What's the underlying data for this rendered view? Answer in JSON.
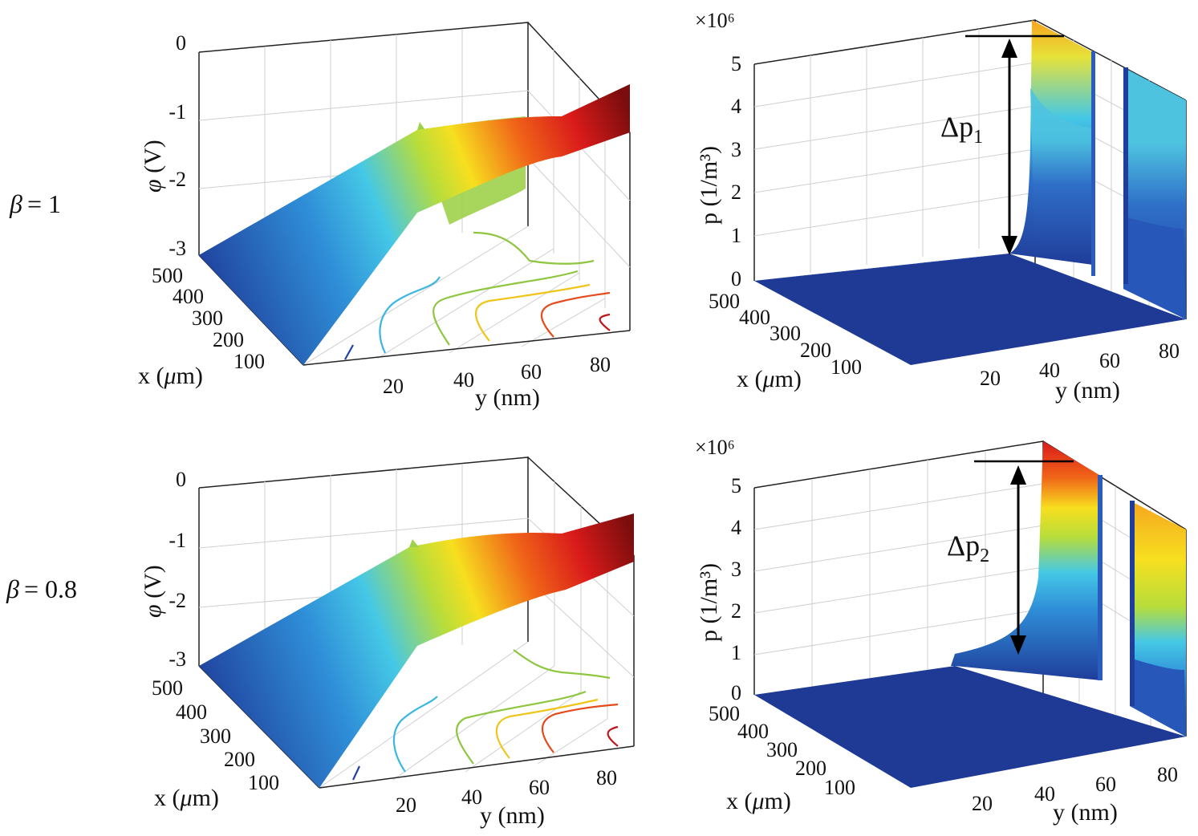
{
  "row_labels": [
    {
      "lhs": "β",
      "rhs": "= 1"
    },
    {
      "lhs": "β",
      "rhs": "= 0.8"
    }
  ],
  "chart_data": [
    {
      "type": "surface",
      "panel": "potential, β = 1",
      "zlabel_sym": "φ",
      "zlabel_unit": " (V)",
      "xlabel_pre": "x (",
      "xlabel_mu": "μ",
      "xlabel_post": "m)",
      "ylabel": "y (nm)",
      "z_ticks": [
        "0",
        "-1",
        "-2",
        "-3"
      ],
      "x_ticks": [
        "500",
        "400",
        "300",
        "200",
        "100"
      ],
      "y_ticks": [
        "20",
        "40",
        "60",
        "80"
      ],
      "zlim": [
        -3,
        0
      ],
      "xlim": [
        0,
        500
      ],
      "ylim": [
        0,
        90
      ],
      "colormap": [
        "#1f3d9a",
        "#2f8fd8",
        "#45c8e6",
        "#b7dd3b",
        "#f7df1f",
        "#f06418",
        "#d91a1a",
        "#7a0d0d"
      ]
    },
    {
      "type": "surface",
      "panel": "hole density, β = 1",
      "zlabel": "p (1/m³)",
      "exponent_label": "×10⁶",
      "xlabel_pre": "x (",
      "xlabel_mu": "μ",
      "xlabel_post": "m)",
      "ylabel": "y (nm)",
      "z_ticks": [
        "5",
        "4",
        "3",
        "2",
        "1",
        "0"
      ],
      "x_ticks": [
        "500",
        "400",
        "300",
        "200",
        "100"
      ],
      "y_ticks": [
        "20",
        "40",
        "60",
        "80"
      ],
      "zlim": [
        0,
        5
      ],
      "xlim": [
        0,
        500
      ],
      "ylim": [
        0,
        90
      ],
      "annotation": {
        "text_pre": "Δp",
        "sub": "1"
      }
    },
    {
      "type": "surface",
      "panel": "potential, β = 0.8",
      "zlabel_sym": "φ",
      "zlabel_unit": " (V)",
      "xlabel_pre": "x (",
      "xlabel_mu": "μ",
      "xlabel_post": "m)",
      "ylabel": "y (nm)",
      "z_ticks": [
        "0",
        "-1",
        "-2",
        "-3"
      ],
      "x_ticks": [
        "500",
        "400",
        "300",
        "200",
        "100"
      ],
      "y_ticks": [
        "20",
        "40",
        "60",
        "80"
      ],
      "zlim": [
        -3,
        0
      ],
      "xlim": [
        0,
        500
      ],
      "ylim": [
        0,
        90
      ]
    },
    {
      "type": "surface",
      "panel": "hole density, β = 0.8",
      "zlabel": "p (1/m³)",
      "exponent_label": "×10⁶",
      "xlabel_pre": "x (",
      "xlabel_mu": "μ",
      "xlabel_post": "m)",
      "ylabel": "y (nm)",
      "z_ticks": [
        "5",
        "4",
        "3",
        "2",
        "1",
        "0"
      ],
      "x_ticks": [
        "500",
        "400",
        "300",
        "200",
        "100"
      ],
      "y_ticks": [
        "20",
        "40",
        "60",
        "80"
      ],
      "zlim": [
        0,
        5
      ],
      "xlim": [
        0,
        500
      ],
      "ylim": [
        0,
        90
      ],
      "annotation": {
        "text_pre": "Δp",
        "sub": "2"
      }
    }
  ]
}
